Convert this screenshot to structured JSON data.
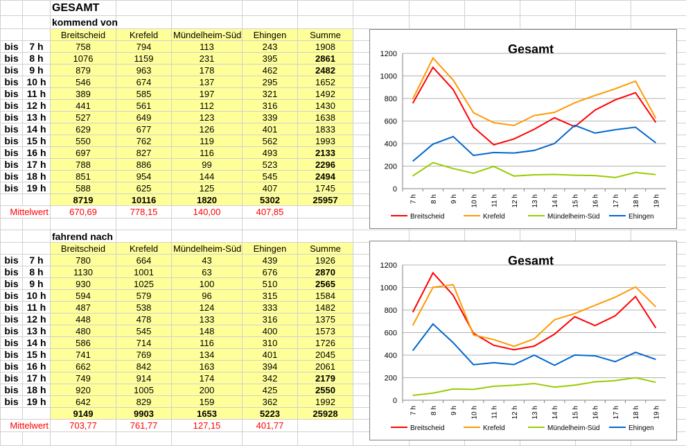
{
  "sheet_title": "GESAMT",
  "columns": [
    "Breitscheid",
    "Krefeld",
    "Mündelheim-Süd",
    "Ehingen",
    "Summe"
  ],
  "row_prefix": "bis",
  "hours": [
    "7 h",
    "8 h",
    "9 h",
    "10 h",
    "11 h",
    "12 h",
    "13 h",
    "14 h",
    "15 h",
    "16 h",
    "17 h",
    "18 h",
    "19 h"
  ],
  "mean_label": "Mittelwert",
  "sections": [
    {
      "title": "kommend von",
      "rows": [
        [
          758,
          794,
          113,
          243,
          1908
        ],
        [
          1076,
          1159,
          231,
          395,
          2861
        ],
        [
          879,
          963,
          178,
          462,
          2482
        ],
        [
          546,
          674,
          137,
          295,
          1652
        ],
        [
          389,
          585,
          197,
          321,
          1492
        ],
        [
          441,
          561,
          112,
          316,
          1430
        ],
        [
          527,
          649,
          123,
          339,
          1638
        ],
        [
          629,
          677,
          126,
          401,
          1833
        ],
        [
          550,
          762,
          119,
          562,
          1993
        ],
        [
          697,
          827,
          116,
          493,
          2133
        ],
        [
          788,
          886,
          99,
          523,
          2296
        ],
        [
          851,
          954,
          144,
          545,
          2494
        ],
        [
          588,
          625,
          125,
          407,
          1745
        ]
      ],
      "bold_sum": [
        false,
        true,
        true,
        false,
        false,
        false,
        false,
        false,
        false,
        true,
        true,
        true,
        false
      ],
      "totals": [
        8719,
        10116,
        1820,
        5302,
        25957
      ],
      "means": [
        "670,69",
        "778,15",
        "140,00",
        "407,85"
      ]
    },
    {
      "title": "fahrend nach",
      "rows": [
        [
          780,
          664,
          43,
          439,
          1926
        ],
        [
          1130,
          1001,
          63,
          676,
          2870
        ],
        [
          930,
          1025,
          100,
          510,
          2565
        ],
        [
          594,
          579,
          96,
          315,
          1584
        ],
        [
          487,
          538,
          124,
          333,
          1482
        ],
        [
          448,
          478,
          133,
          316,
          1375
        ],
        [
          480,
          545,
          148,
          400,
          1573
        ],
        [
          586,
          714,
          116,
          310,
          1726
        ],
        [
          741,
          769,
          134,
          401,
          2045
        ],
        [
          662,
          842,
          163,
          394,
          2061
        ],
        [
          749,
          914,
          174,
          342,
          2179
        ],
        [
          920,
          1005,
          200,
          425,
          2550
        ],
        [
          642,
          829,
          159,
          362,
          1992
        ]
      ],
      "bold_sum": [
        false,
        true,
        true,
        false,
        false,
        false,
        false,
        false,
        false,
        false,
        true,
        true,
        false
      ],
      "totals": [
        9149,
        9903,
        1653,
        5223,
        25928
      ],
      "means": [
        "703,77",
        "761,77",
        "127,15",
        "401,77"
      ]
    }
  ],
  "chart_data": [
    {
      "type": "line",
      "title": "Gesamt",
      "categories": [
        "7 h",
        "8 h",
        "9 h",
        "10 h",
        "11 h",
        "12 h",
        "13 h",
        "14 h",
        "15 h",
        "16 h",
        "17 h",
        "18 h",
        "19 h"
      ],
      "ylim": [
        0,
        1200
      ],
      "yticks": [
        0,
        200,
        400,
        600,
        800,
        1000,
        1200
      ],
      "grid": true,
      "legend": "bottom",
      "series": [
        {
          "name": "Breitscheid",
          "color": "#ff0000",
          "values": [
            758,
            1076,
            879,
            546,
            389,
            441,
            527,
            629,
            550,
            697,
            788,
            851,
            588
          ]
        },
        {
          "name": "Krefeld",
          "color": "#ff9900",
          "values": [
            794,
            1159,
            963,
            674,
            585,
            561,
            649,
            677,
            762,
            827,
            886,
            954,
            625
          ]
        },
        {
          "name": "Mündelheim-Süd",
          "color": "#99cc00",
          "values": [
            113,
            231,
            178,
            137,
            197,
            112,
            123,
            126,
            119,
            116,
            99,
            144,
            125
          ]
        },
        {
          "name": "Ehingen",
          "color": "#0066cc",
          "values": [
            243,
            395,
            462,
            295,
            321,
            316,
            339,
            401,
            562,
            493,
            523,
            545,
            407
          ]
        }
      ]
    },
    {
      "type": "line",
      "title": "Gesamt",
      "categories": [
        "7 h",
        "8 h",
        "9 h",
        "10 h",
        "11 h",
        "12 h",
        "13 h",
        "14 h",
        "15 h",
        "16 h",
        "17 h",
        "18 h",
        "19 h"
      ],
      "ylim": [
        0,
        1200
      ],
      "yticks": [
        0,
        200,
        400,
        600,
        800,
        1000,
        1200
      ],
      "grid": true,
      "legend": "bottom",
      "series": [
        {
          "name": "Breitscheid",
          "color": "#ff0000",
          "values": [
            780,
            1130,
            930,
            594,
            487,
            448,
            480,
            586,
            741,
            662,
            749,
            920,
            642
          ]
        },
        {
          "name": "Krefeld",
          "color": "#ff9900",
          "values": [
            664,
            1001,
            1025,
            579,
            538,
            478,
            545,
            714,
            769,
            842,
            914,
            1005,
            829
          ]
        },
        {
          "name": "Mündelheim-Süd",
          "color": "#99cc00",
          "values": [
            43,
            63,
            100,
            96,
            124,
            133,
            148,
            116,
            134,
            163,
            174,
            200,
            159
          ]
        },
        {
          "name": "Ehingen",
          "color": "#0066cc",
          "values": [
            439,
            676,
            510,
            315,
            333,
            316,
            400,
            310,
            401,
            394,
            342,
            425,
            362
          ]
        }
      ]
    }
  ]
}
